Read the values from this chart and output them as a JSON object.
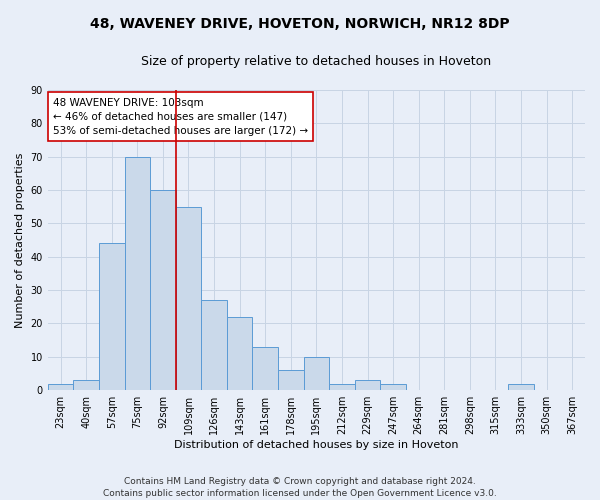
{
  "title_line1": "48, WAVENEY DRIVE, HOVETON, NORWICH, NR12 8DP",
  "title_line2": "Size of property relative to detached houses in Hoveton",
  "xlabel": "Distribution of detached houses by size in Hoveton",
  "ylabel": "Number of detached properties",
  "categories": [
    "23sqm",
    "40sqm",
    "57sqm",
    "75sqm",
    "92sqm",
    "109sqm",
    "126sqm",
    "143sqm",
    "161sqm",
    "178sqm",
    "195sqm",
    "212sqm",
    "229sqm",
    "247sqm",
    "264sqm",
    "281sqm",
    "298sqm",
    "315sqm",
    "333sqm",
    "350sqm",
    "367sqm"
  ],
  "values": [
    2,
    3,
    44,
    70,
    60,
    55,
    27,
    22,
    13,
    6,
    10,
    2,
    3,
    2,
    0,
    0,
    0,
    0,
    2,
    0,
    0
  ],
  "bar_color": "#cad9ea",
  "bar_edge_color": "#5b9bd5",
  "grid_color": "#c8d4e4",
  "background_color": "#e8eef8",
  "annotation_box_text": "48 WAVENEY DRIVE: 103sqm\n← 46% of detached houses are smaller (147)\n53% of semi-detached houses are larger (172) →",
  "vline_x": 4.5,
  "vline_color": "#cc0000",
  "ylim": [
    0,
    90
  ],
  "yticks": [
    0,
    10,
    20,
    30,
    40,
    50,
    60,
    70,
    80,
    90
  ],
  "footer_line1": "Contains HM Land Registry data © Crown copyright and database right 2024.",
  "footer_line2": "Contains public sector information licensed under the Open Government Licence v3.0.",
  "title1_fontsize": 10,
  "title2_fontsize": 9,
  "axis_label_fontsize": 8,
  "tick_fontsize": 7,
  "annotation_fontsize": 7.5,
  "footer_fontsize": 6.5
}
